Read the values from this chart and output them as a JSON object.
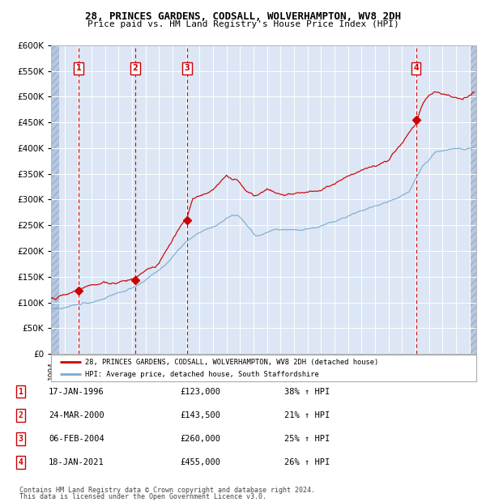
{
  "title1": "28, PRINCES GARDENS, CODSALL, WOLVERHAMPTON, WV8 2DH",
  "title2": "Price paid vs. HM Land Registry's House Price Index (HPI)",
  "sale_dates_num": [
    1996.04,
    2000.23,
    2004.09,
    2021.04
  ],
  "sale_prices": [
    123000,
    143500,
    260000,
    455000
  ],
  "sale_labels": [
    "1",
    "2",
    "3",
    "4"
  ],
  "ylim": [
    0,
    600000
  ],
  "xlim_start": 1994.0,
  "xlim_end": 2025.5,
  "background_color": "#dce6f5",
  "hatch_color": "#b8c8e0",
  "red_line_color": "#cc0000",
  "blue_line_color": "#7aaad0",
  "marker_color": "#cc0000",
  "dashed_line_color": "#cc0000",
  "grid_color": "#ffffff",
  "legend_label1": "28, PRINCES GARDENS, CODSALL, WOLVERHAMPTON, WV8 2DH (detached house)",
  "legend_label2": "HPI: Average price, detached house, South Staffordshire",
  "table_rows": [
    {
      "num": "1",
      "date": "17-JAN-1996",
      "price": "£123,000",
      "pct": "38% ↑ HPI"
    },
    {
      "num": "2",
      "date": "24-MAR-2000",
      "price": "£143,500",
      "pct": "21% ↑ HPI"
    },
    {
      "num": "3",
      "date": "06-FEB-2004",
      "price": "£260,000",
      "pct": "25% ↑ HPI"
    },
    {
      "num": "4",
      "date": "18-JAN-2021",
      "price": "£455,000",
      "pct": "26% ↑ HPI"
    }
  ],
  "footnote1": "Contains HM Land Registry data © Crown copyright and database right 2024.",
  "footnote2": "This data is licensed under the Open Government Licence v3.0.",
  "hpi_key_x": [
    1994.0,
    1995.0,
    1996.0,
    1997.0,
    1998.0,
    1999.0,
    2000.0,
    2001.0,
    2002.0,
    2003.0,
    2004.0,
    2005.0,
    2006.0,
    2007.0,
    2007.8,
    2008.5,
    2009.2,
    2009.8,
    2010.5,
    2011.5,
    2012.5,
    2013.5,
    2014.5,
    2015.5,
    2016.5,
    2017.5,
    2018.5,
    2019.5,
    2020.5,
    2021.5,
    2022.5,
    2023.5,
    2024.5,
    2025.3
  ],
  "hpi_key_y": [
    88000,
    92000,
    98000,
    105000,
    112000,
    120000,
    130000,
    145000,
    165000,
    190000,
    215000,
    235000,
    248000,
    265000,
    275000,
    255000,
    235000,
    240000,
    248000,
    248000,
    245000,
    250000,
    258000,
    268000,
    278000,
    288000,
    295000,
    305000,
    320000,
    370000,
    400000,
    405000,
    405000,
    408000
  ],
  "prop_key_x": [
    1994.0,
    1995.0,
    1996.04,
    1997.0,
    1998.0,
    1999.0,
    2000.23,
    2001.0,
    2002.0,
    2003.0,
    2004.09,
    2004.5,
    2005.0,
    2006.0,
    2007.0,
    2007.8,
    2008.5,
    2009.0,
    2009.5,
    2010.0,
    2011.0,
    2012.0,
    2013.0,
    2014.0,
    2015.0,
    2016.0,
    2017.0,
    2018.0,
    2019.0,
    2020.0,
    2021.04,
    2021.5,
    2022.0,
    2022.5,
    2023.0,
    2023.5,
    2024.0,
    2024.5,
    2025.0,
    2025.3
  ],
  "prop_key_y": [
    108000,
    112000,
    123000,
    132000,
    138000,
    140000,
    143500,
    158000,
    172000,
    215000,
    260000,
    295000,
    305000,
    315000,
    350000,
    340000,
    315000,
    305000,
    308000,
    315000,
    308000,
    310000,
    315000,
    322000,
    335000,
    352000,
    362000,
    370000,
    380000,
    420000,
    455000,
    490000,
    510000,
    515000,
    510000,
    505000,
    500000,
    498000,
    505000,
    510000
  ]
}
